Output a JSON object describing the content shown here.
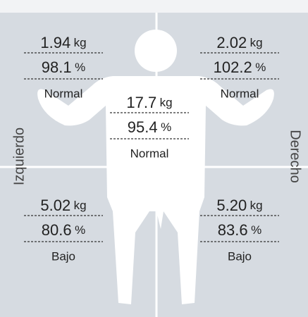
{
  "left_label": "Izquierdo",
  "right_label": "Derecho",
  "segments": [
    {
      "mass": "1.94",
      "mass_unit": "kg",
      "percent": "98.1",
      "percent_unit": "%",
      "status": "Normal"
    },
    {
      "mass": "2.02",
      "mass_unit": "kg",
      "percent": "102.2",
      "percent_unit": "%",
      "status": "Normal"
    },
    {
      "mass": "17.7",
      "mass_unit": "kg",
      "percent": "95.4",
      "percent_unit": "%",
      "status": "Normal"
    },
    {
      "mass": "5.02",
      "mass_unit": "kg",
      "percent": "80.6",
      "percent_unit": "%",
      "status": "Bajo"
    },
    {
      "mass": "5.20",
      "mass_unit": "kg",
      "percent": "83.6",
      "percent_unit": "%",
      "status": "Bajo"
    }
  ]
}
